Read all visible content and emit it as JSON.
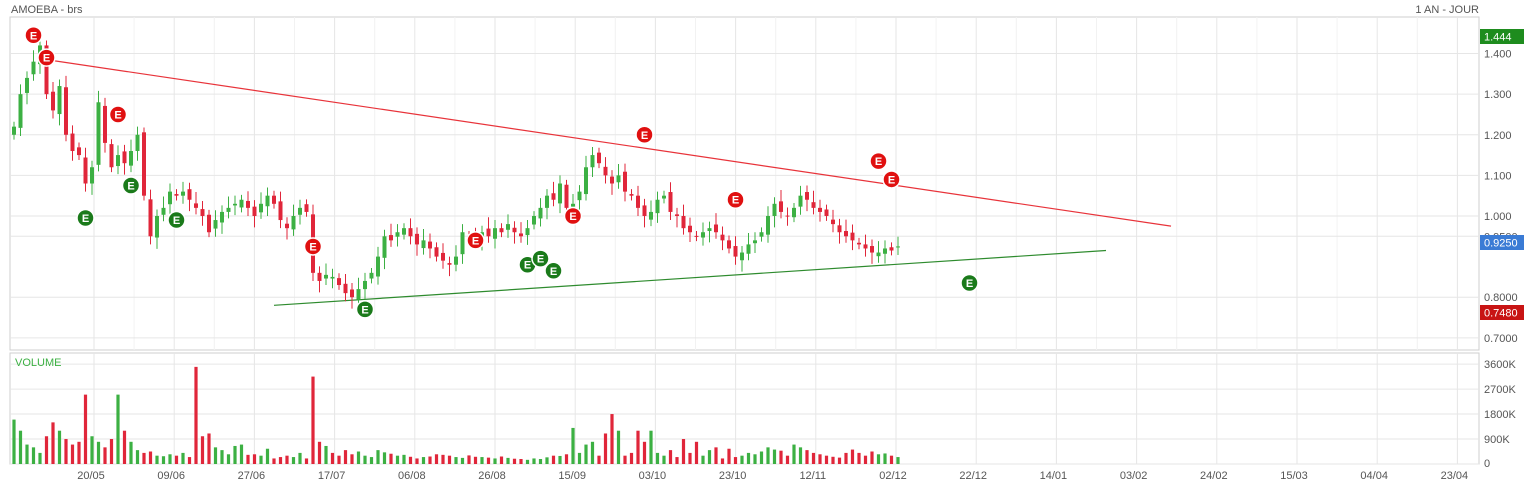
{
  "header": {
    "title": "AMOEBA - brs",
    "period": "1 AN - JOUR"
  },
  "volume_panel": {
    "title": "VOLUME"
  },
  "price_tags": {
    "high": "1.444",
    "last": "0.9250",
    "low": "0.7480"
  },
  "colors": {
    "up": "#3cb043",
    "down": "#e0263a",
    "resistance": "#e8333a",
    "support": "#2e8b2e",
    "earnings_red": "#e01010",
    "earnings_green": "#1a7a1a",
    "high_tag": "#1e8c1e",
    "last_tag": "#3a7bd5",
    "low_tag": "#c81414"
  },
  "earnings_label": "E",
  "chart_data": [
    {
      "type": "candlestick",
      "y_axis": {
        "range": [
          0.67,
          1.49
        ],
        "ticks": [
          "1.400",
          "1.300",
          "1.200",
          "1.100",
          "1.000",
          "0.9500",
          "0.8000",
          "0.7000"
        ],
        "tick_values": [
          1.4,
          1.3,
          1.2,
          1.1,
          1.0,
          0.95,
          0.8,
          0.7
        ]
      },
      "x_axis": {
        "ticks": [
          "20/05",
          "09/06",
          "27/06",
          "17/07",
          "06/08",
          "26/08",
          "15/09",
          "03/10",
          "23/10",
          "12/11",
          "02/12",
          "22/12",
          "14/01",
          "03/02",
          "24/02",
          "15/03",
          "04/04",
          "23/04"
        ]
      },
      "grid": true,
      "closes": [
        1.22,
        1.3,
        1.34,
        1.38,
        1.42,
        1.3,
        1.26,
        1.32,
        1.2,
        1.16,
        1.15,
        1.08,
        1.12,
        1.28,
        1.18,
        1.12,
        1.15,
        1.13,
        1.16,
        1.2,
        1.05,
        0.95,
        1.0,
        1.02,
        1.06,
        1.05,
        1.06,
        1.04,
        1.02,
        1.0,
        0.96,
        0.99,
        1.01,
        1.02,
        1.03,
        1.04,
        1.02,
        1.0,
        1.03,
        1.05,
        1.03,
        0.99,
        0.97,
        1.0,
        1.02,
        1.01,
        0.86,
        0.84,
        0.855,
        0.85,
        0.83,
        0.81,
        0.8,
        0.82,
        0.84,
        0.86,
        0.9,
        0.95,
        0.94,
        0.96,
        0.97,
        0.95,
        0.93,
        0.94,
        0.92,
        0.9,
        0.89,
        0.88,
        0.9,
        0.96,
        0.95,
        0.94,
        0.96,
        0.95,
        0.97,
        0.96,
        0.98,
        0.96,
        0.95,
        0.97,
        1.0,
        1.02,
        1.05,
        1.04,
        1.08,
        1.02,
        1.03,
        1.06,
        1.12,
        1.15,
        1.13,
        1.1,
        1.08,
        1.1,
        1.06,
        1.05,
        1.02,
        1.0,
        1.01,
        1.04,
        1.05,
        1.01,
        1.0,
        0.97,
        0.96,
        0.95,
        0.96,
        0.97,
        0.96,
        0.94,
        0.92,
        0.9,
        0.91,
        0.93,
        0.94,
        0.96,
        1.0,
        1.03,
        1.01,
        1.0,
        1.02,
        1.05,
        1.04,
        1.02,
        1.01,
        1.0,
        0.98,
        0.96,
        0.95,
        0.94,
        0.93,
        0.92,
        0.91,
        0.91,
        0.92,
        0.915,
        0.925
      ],
      "events": [
        {
          "label": "E",
          "kind": "red",
          "index": 3,
          "price": 1.445
        },
        {
          "label": "E",
          "kind": "red",
          "index": 5,
          "price": 1.39
        },
        {
          "label": "E",
          "kind": "red",
          "index": 16,
          "price": 1.25
        },
        {
          "label": "E",
          "kind": "red",
          "index": 46,
          "price": 0.925
        },
        {
          "label": "E",
          "kind": "red",
          "index": 71,
          "price": 0.94
        },
        {
          "label": "E",
          "kind": "red",
          "index": 86,
          "price": 1.0
        },
        {
          "label": "E",
          "kind": "red",
          "index": 97,
          "price": 1.2
        },
        {
          "label": "E",
          "kind": "red",
          "index": 111,
          "price": 1.04
        },
        {
          "label": "E",
          "kind": "red",
          "index": 133,
          "price": 1.135
        },
        {
          "label": "E",
          "kind": "red",
          "index": 135,
          "price": 1.09
        },
        {
          "label": "E",
          "kind": "green",
          "index": 11,
          "price": 0.995
        },
        {
          "label": "E",
          "kind": "green",
          "index": 18,
          "price": 1.075
        },
        {
          "label": "E",
          "kind": "green",
          "index": 25,
          "price": 0.99
        },
        {
          "label": "E",
          "kind": "green",
          "index": 54,
          "price": 0.77
        },
        {
          "label": "E",
          "kind": "green",
          "index": 79,
          "price": 0.88
        },
        {
          "label": "E",
          "kind": "green",
          "index": 81,
          "price": 0.895
        },
        {
          "label": "E",
          "kind": "green",
          "index": 83,
          "price": 0.865
        },
        {
          "label": "E",
          "kind": "green",
          "index": 147,
          "price": 0.835
        }
      ],
      "trendlines": [
        {
          "name": "resistance",
          "from": {
            "index": 5,
            "price": 1.385
          },
          "to": {
            "index": 178,
            "price": 0.975
          }
        },
        {
          "name": "support",
          "from": {
            "index": 40,
            "price": 0.78
          },
          "to": {
            "index": 168,
            "price": 0.915
          }
        }
      ]
    },
    {
      "type": "bar",
      "y_axis": {
        "range": [
          0,
          4000
        ],
        "ticks": [
          "3600K",
          "2700K",
          "1800K",
          "900K",
          "0"
        ],
        "tick_values": [
          3600,
          2700,
          1800,
          900,
          0
        ]
      },
      "volumes_k": [
        1600,
        1200,
        700,
        600,
        400,
        1000,
        1500,
        1200,
        900,
        700,
        800,
        2500,
        1000,
        800,
        600,
        900,
        2500,
        1200,
        800,
        500,
        400,
        450,
        300,
        280,
        350,
        300,
        400,
        250,
        3500,
        1000,
        1100,
        600,
        500,
        350,
        650,
        700,
        330,
        350,
        300,
        550,
        200,
        250,
        300,
        250,
        400,
        200,
        3150,
        800,
        650,
        400,
        300,
        500,
        350,
        450,
        300,
        250,
        500,
        420,
        370,
        300,
        330,
        260,
        200,
        250,
        270,
        350,
        330,
        300,
        250,
        220,
        310,
        260,
        250,
        230,
        200,
        270,
        220,
        190,
        180,
        150,
        200,
        180,
        240,
        300,
        290,
        350,
        1300,
        400,
        700,
        800,
        300,
        1100,
        1800,
        1200,
        300,
        400,
        1200,
        800,
        1200,
        400,
        300,
        500,
        250,
        900,
        400,
        800,
        300,
        500,
        600,
        200,
        550,
        250,
        300,
        400,
        350,
        450,
        600,
        520,
        480,
        300,
        700,
        600,
        500,
        400,
        350,
        300,
        260,
        230,
        400,
        520,
        400,
        300,
        450,
        350,
        380,
        300,
        250,
        200,
        260,
        300,
        220,
        280,
        320,
        240,
        260,
        180
      ]
    }
  ]
}
